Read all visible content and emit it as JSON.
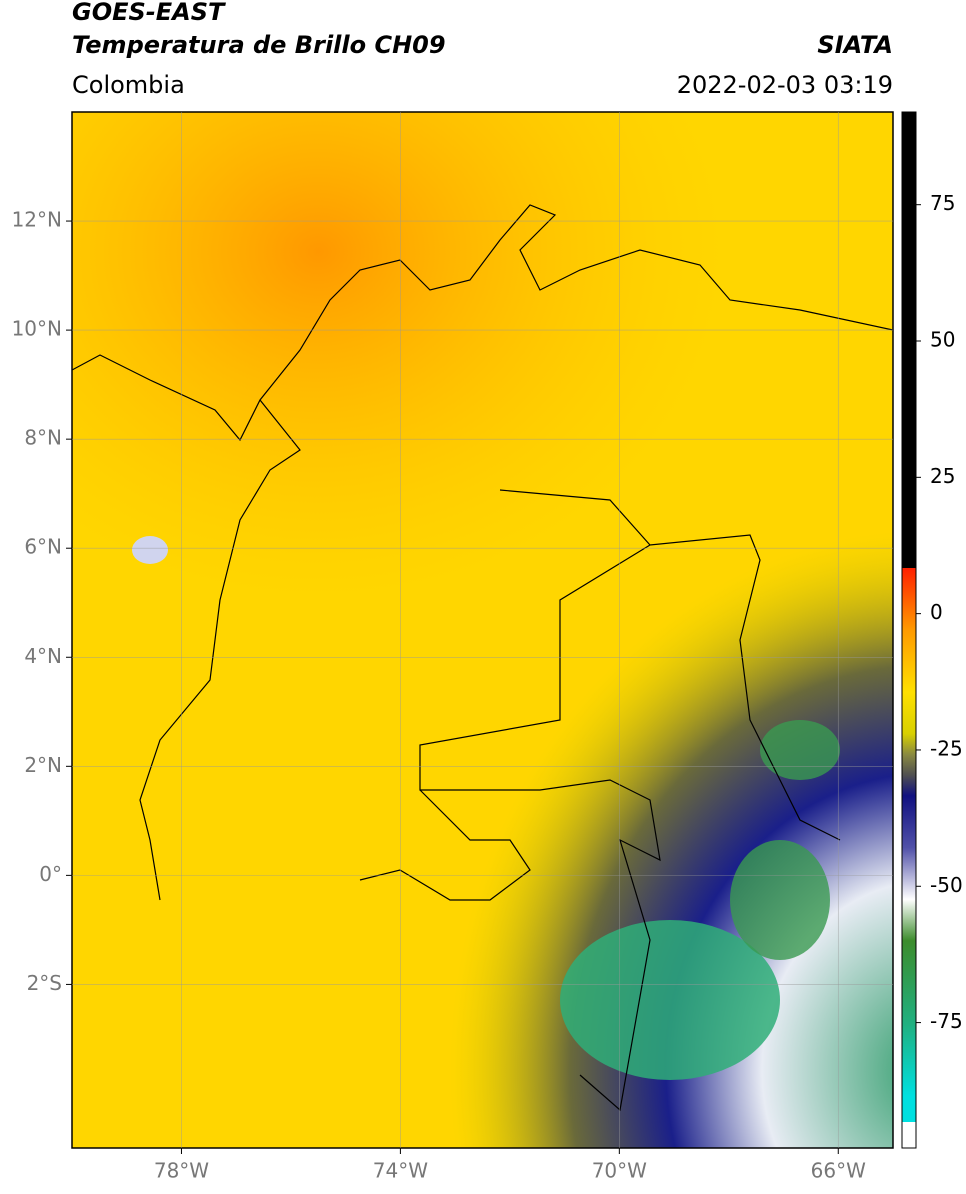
{
  "header": {
    "title": "GOES-EAST",
    "subtitle": "Temperatura de Brillo CH09",
    "region": "Colombia",
    "source": "SIATA",
    "datetime": "2022-02-03 03:19"
  },
  "map": {
    "xlim": [
      -80,
      -65
    ],
    "ylim": [
      -5,
      14
    ],
    "xticks": [
      {
        "value": -78,
        "label": "78°W"
      },
      {
        "value": -74,
        "label": "74°W"
      },
      {
        "value": -70,
        "label": "70°W"
      },
      {
        "value": -66,
        "label": "66°W"
      }
    ],
    "yticks": [
      {
        "value": 12,
        "label": "12°N"
      },
      {
        "value": 10,
        "label": "10°N"
      },
      {
        "value": 8,
        "label": "8°N"
      },
      {
        "value": 6,
        "label": "6°N"
      },
      {
        "value": 4,
        "label": "4°N"
      },
      {
        "value": 2,
        "label": "2°N"
      },
      {
        "value": 0,
        "label": "0°"
      },
      {
        "value": -2,
        "label": "2°S"
      }
    ],
    "grid": true
  },
  "colorbar": {
    "lim": [
      -98,
      92
    ],
    "ticks": [
      75,
      50,
      25,
      0,
      -25,
      -50,
      -75
    ]
  }
}
